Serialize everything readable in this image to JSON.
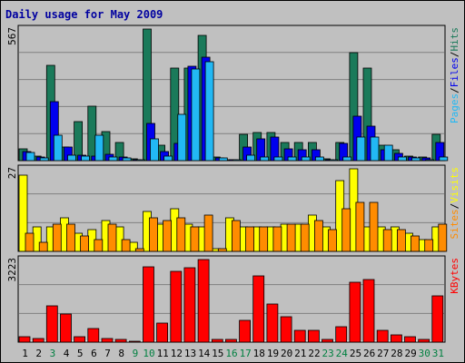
{
  "chart_data": {
    "type": "bar",
    "title": "Daily usage for May 2009",
    "categories": [
      "1",
      "2",
      "3",
      "4",
      "5",
      "6",
      "7",
      "8",
      "9",
      "10",
      "11",
      "12",
      "13",
      "14",
      "15",
      "16",
      "17",
      "18",
      "19",
      "20",
      "21",
      "22",
      "23",
      "24",
      "25",
      "26",
      "27",
      "28",
      "29",
      "30",
      "31"
    ],
    "weekend_days": [
      "3",
      "9",
      "10",
      "16",
      "17",
      "23",
      "24",
      "30",
      "31"
    ],
    "panels": [
      {
        "id": "hits",
        "ymax": 567,
        "ymax_label": "567",
        "right_labels": [
          "Pages",
          "Files",
          "Hits"
        ],
        "series": [
          {
            "name": "Hits",
            "color": "#1a7a5a",
            "values": [
              50,
              18,
              410,
              60,
              170,
              235,
              125,
              80,
              8,
              567,
              65,
              400,
              400,
              540,
              15,
              5,
              115,
              120,
              120,
              78,
              78,
              78,
              8,
              78,
              465,
              400,
              65,
              45,
              20,
              15,
              115
            ]
          },
          {
            "name": "Files",
            "color": "#0000ee",
            "values": [
              38,
              15,
              255,
              60,
              25,
              20,
              28,
              15,
              3,
              160,
              40,
              75,
              405,
              445,
              10,
              3,
              60,
              95,
              100,
              50,
              45,
              45,
              3,
              75,
              190,
              150,
              45,
              30,
              15,
              10,
              78
            ]
          },
          {
            "name": "Pages",
            "color": "#22b8f4",
            "values": [
              35,
              12,
              110,
              25,
              20,
              110,
              15,
              10,
              2,
              95,
              20,
              200,
              395,
              425,
              10,
              2,
              25,
              15,
              15,
              15,
              15,
              15,
              2,
              15,
              100,
              100,
              65,
              15,
              10,
              5,
              15
            ]
          }
        ]
      },
      {
        "id": "visits",
        "ymax": 27,
        "ymax_label": "27",
        "right_labels": [
          "Sites",
          "Visits"
        ],
        "series": [
          {
            "name": "Visits",
            "color": "#ffff00",
            "values": [
              25,
              8,
              8,
              11,
              6,
              7,
              10,
              8,
              3,
              13,
              9,
              14,
              9,
              8,
              1,
              11,
              8,
              8,
              8,
              9,
              9,
              12,
              8,
              23,
              27,
              8,
              8,
              8,
              6,
              4,
              8
            ]
          },
          {
            "name": "Sites",
            "color": "#ff8c00",
            "values": [
              6,
              3,
              9,
              9,
              5,
              4,
              9,
              4,
              1,
              11,
              10,
              11,
              8,
              12,
              1,
              10,
              8,
              8,
              8,
              9,
              9,
              10,
              7,
              14,
              16,
              16,
              7,
              7,
              5,
              4,
              9
            ]
          }
        ]
      },
      {
        "id": "kbytes",
        "ymax": 3223,
        "ymax_label": "3223",
        "right_labels": [
          "KBytes"
        ],
        "series": [
          {
            "name": "KBytes",
            "color": "#ff0000",
            "values": [
              230,
              130,
              1430,
              1100,
              210,
              530,
              130,
              90,
              20,
              2950,
              730,
              2780,
              2900,
              3223,
              90,
              100,
              850,
              2590,
              1500,
              980,
              450,
              450,
              90,
              600,
              2330,
              2450,
              450,
              290,
              200,
              100,
              1800
            ]
          }
        ]
      }
    ]
  },
  "colors": {
    "background": "#c0c0c0",
    "title": "#0000a0",
    "grid": "#808080",
    "weekday_label": "#000000",
    "weekend_label": "#008040"
  }
}
